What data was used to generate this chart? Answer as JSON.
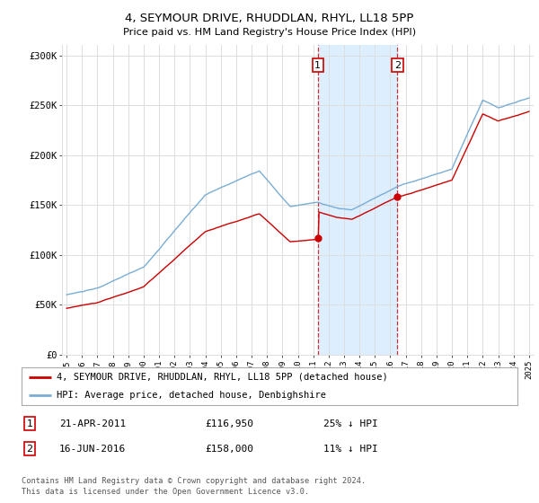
{
  "title": "4, SEYMOUR DRIVE, RHUDDLAN, RHYL, LL18 5PP",
  "subtitle": "Price paid vs. HM Land Registry's House Price Index (HPI)",
  "ylim": [
    0,
    310000
  ],
  "yticks": [
    0,
    50000,
    100000,
    150000,
    200000,
    250000,
    300000
  ],
  "ytick_labels": [
    "£0",
    "£50K",
    "£100K",
    "£150K",
    "£200K",
    "£250K",
    "£300K"
  ],
  "hpi_color": "#7aadd4",
  "price_color": "#cc0000",
  "sale1_year": 2011.3,
  "sale1_price": 116950,
  "sale2_year": 2016.46,
  "sale2_price": 158000,
  "vline_color": "#cc0000",
  "shade_color": "#ddeeff",
  "legend_line1": "4, SEYMOUR DRIVE, RHUDDLAN, RHYL, LL18 5PP (detached house)",
  "legend_line2": "HPI: Average price, detached house, Denbighshire",
  "footer": "Contains HM Land Registry data © Crown copyright and database right 2024.\nThis data is licensed under the Open Government Licence v3.0.",
  "background_color": "#ffffff",
  "plot_bg_color": "#ffffff",
  "grid_color": "#dddddd"
}
